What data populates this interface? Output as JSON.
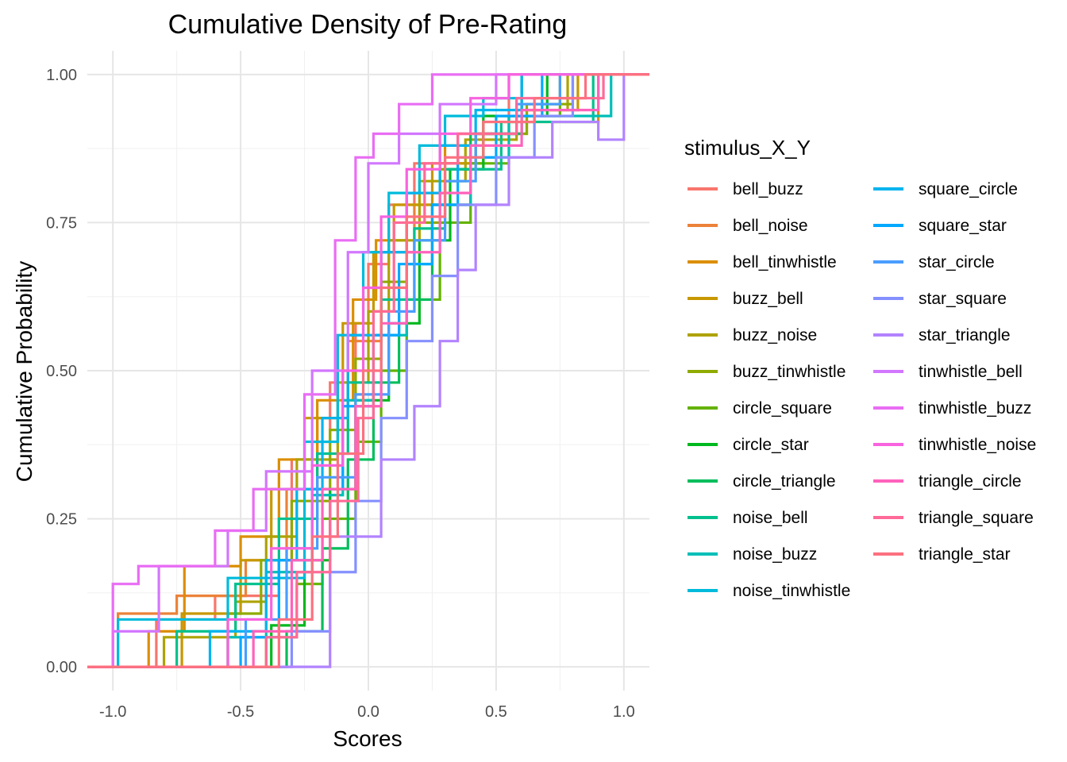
{
  "chart_data": {
    "type": "line",
    "title": "Cumulative Density of Pre-Rating",
    "xlabel": "Scores",
    "ylabel": "Cumulative Probability",
    "xlim": [
      -1.1,
      1.1
    ],
    "ylim": [
      -0.04,
      1.04
    ],
    "x_ticks": [
      -1.0,
      -0.5,
      0.0,
      0.5,
      1.0
    ],
    "x_tick_labels": [
      "-1.0",
      "-0.5",
      "0.0",
      "0.5",
      "1.0"
    ],
    "y_ticks": [
      0.0,
      0.25,
      0.5,
      0.75,
      1.0
    ],
    "y_tick_labels": [
      "0.00",
      "0.25",
      "0.50",
      "0.75",
      "1.00"
    ],
    "grid": true,
    "legend_title": "stimulus_X_Y",
    "legend_position": "right",
    "series": [
      {
        "name": "bell_buzz",
        "color": "#F8766D",
        "x": [
          -0.83,
          -0.6,
          -0.35,
          -0.3,
          -0.22,
          -0.15,
          -0.05,
          0.0,
          0.08,
          0.18,
          0.35,
          0.55
        ],
        "y": [
          0.08,
          0.12,
          0.18,
          0.35,
          0.38,
          0.48,
          0.58,
          0.68,
          0.78,
          0.85,
          0.9,
          1.0
        ]
      },
      {
        "name": "bell_noise",
        "color": "#EC8239",
        "x": [
          -0.98,
          -0.75,
          -0.48,
          -0.32,
          -0.2,
          -0.08,
          0.05,
          0.18,
          0.28,
          0.42,
          0.6
        ],
        "y": [
          0.09,
          0.12,
          0.18,
          0.3,
          0.42,
          0.55,
          0.7,
          0.78,
          0.85,
          0.9,
          1.0
        ]
      },
      {
        "name": "bell_tinwhistle",
        "color": "#DB8E00",
        "x": [
          -0.86,
          -0.72,
          -0.5,
          -0.35,
          -0.2,
          -0.06,
          0.03,
          0.15,
          0.3,
          0.45,
          0.9
        ],
        "y": [
          0.06,
          0.17,
          0.22,
          0.35,
          0.45,
          0.62,
          0.72,
          0.8,
          0.88,
          0.92,
          1.0
        ]
      },
      {
        "name": "buzz_bell",
        "color": "#C79800",
        "x": [
          -0.73,
          -0.5,
          -0.38,
          -0.25,
          -0.1,
          0.02,
          0.1,
          0.25,
          0.45,
          0.62,
          0.82
        ],
        "y": [
          0.09,
          0.18,
          0.3,
          0.42,
          0.58,
          0.7,
          0.78,
          0.85,
          0.9,
          0.94,
          1.0
        ]
      },
      {
        "name": "buzz_noise",
        "color": "#AEA200",
        "x": [
          -0.8,
          -0.52,
          -0.4,
          -0.28,
          -0.12,
          0.0,
          0.08,
          0.2,
          0.38,
          0.58,
          0.78
        ],
        "y": [
          0.05,
          0.11,
          0.22,
          0.35,
          0.48,
          0.6,
          0.72,
          0.82,
          0.89,
          0.94,
          1.0
        ]
      },
      {
        "name": "buzz_tinwhistle",
        "color": "#8FAA00",
        "x": [
          -0.55,
          -0.42,
          -0.3,
          -0.15,
          -0.05,
          0.05,
          0.15,
          0.28,
          0.42,
          0.62,
          0.8
        ],
        "y": [
          0.09,
          0.18,
          0.28,
          0.4,
          0.52,
          0.65,
          0.75,
          0.84,
          0.9,
          0.95,
          1.0
        ]
      },
      {
        "name": "circle_square",
        "color": "#64B200",
        "x": [
          -0.4,
          -0.28,
          -0.18,
          -0.05,
          0.05,
          0.15,
          0.28,
          0.4,
          0.55,
          0.75
        ],
        "y": [
          0.05,
          0.14,
          0.25,
          0.38,
          0.5,
          0.62,
          0.75,
          0.85,
          0.93,
          1.0
        ]
      },
      {
        "name": "circle_star",
        "color": "#00B81F",
        "x": [
          -0.38,
          -0.25,
          -0.15,
          -0.05,
          0.08,
          0.2,
          0.32,
          0.45,
          0.7
        ],
        "y": [
          0.07,
          0.18,
          0.3,
          0.45,
          0.58,
          0.72,
          0.84,
          0.93,
          1.0
        ]
      },
      {
        "name": "circle_triangle",
        "color": "#00BD5C",
        "x": [
          -0.32,
          -0.18,
          -0.08,
          0.02,
          0.12,
          0.25,
          0.4,
          0.6
        ],
        "y": [
          0.06,
          0.2,
          0.35,
          0.48,
          0.62,
          0.78,
          0.9,
          1.0
        ]
      },
      {
        "name": "noise_bell",
        "color": "#00C08D",
        "x": [
          -0.75,
          -0.52,
          -0.35,
          -0.2,
          -0.08,
          0.05,
          0.18,
          0.3,
          0.52,
          0.88
        ],
        "y": [
          0.06,
          0.14,
          0.25,
          0.36,
          0.48,
          0.62,
          0.74,
          0.84,
          0.92,
          1.0
        ]
      },
      {
        "name": "noise_buzz",
        "color": "#00BFB7",
        "x": [
          -0.55,
          -0.4,
          -0.22,
          -0.1,
          0.02,
          0.15,
          0.25,
          0.4,
          0.55,
          0.95
        ],
        "y": [
          0.05,
          0.16,
          0.29,
          0.45,
          0.56,
          0.68,
          0.78,
          0.86,
          0.93,
          1.0
        ]
      },
      {
        "name": "noise_tinwhistle",
        "color": "#00BBDB",
        "x": [
          -0.98,
          -0.55,
          -0.25,
          -0.12,
          -0.02,
          0.08,
          0.2,
          0.3,
          0.45,
          0.6
        ],
        "y": [
          0.08,
          0.15,
          0.38,
          0.56,
          0.7,
          0.8,
          0.88,
          0.93,
          0.96,
          1.0
        ]
      },
      {
        "name": "square_circle",
        "color": "#00B4EF",
        "x": [
          -0.62,
          -0.4,
          -0.28,
          -0.18,
          -0.08,
          0.05,
          0.15,
          0.28,
          0.42,
          0.6
        ],
        "y": [
          0.06,
          0.18,
          0.3,
          0.42,
          0.56,
          0.7,
          0.8,
          0.88,
          0.94,
          1.0
        ]
      },
      {
        "name": "square_star",
        "color": "#00A9FF",
        "x": [
          -0.5,
          -0.35,
          -0.22,
          -0.1,
          0.02,
          0.12,
          0.25,
          0.35,
          0.5,
          0.68
        ],
        "y": [
          0.05,
          0.18,
          0.3,
          0.44,
          0.56,
          0.68,
          0.78,
          0.86,
          0.93,
          1.0
        ]
      },
      {
        "name": "star_circle",
        "color": "#4A9DFF",
        "x": [
          -0.48,
          -0.32,
          -0.2,
          -0.05,
          0.08,
          0.18,
          0.3,
          0.42,
          0.58,
          0.75
        ],
        "y": [
          0.08,
          0.2,
          0.32,
          0.46,
          0.6,
          0.72,
          0.82,
          0.9,
          0.95,
          1.0
        ]
      },
      {
        "name": "star_square",
        "color": "#8590FF",
        "x": [
          -0.3,
          -0.15,
          -0.05,
          0.05,
          0.15,
          0.25,
          0.35,
          0.5,
          0.65,
          0.8
        ],
        "y": [
          0.06,
          0.16,
          0.28,
          0.42,
          0.55,
          0.66,
          0.78,
          0.86,
          0.93,
          1.0
        ]
      },
      {
        "name": "star_triangle",
        "color": "#B283FF",
        "x": [
          -0.15,
          0.05,
          0.18,
          0.28,
          0.35,
          0.42,
          0.55,
          0.72,
          0.9,
          1.0
        ],
        "y": [
          0.22,
          0.35,
          0.44,
          0.55,
          0.67,
          0.78,
          0.86,
          0.92,
          0.89,
          1.0
        ]
      },
      {
        "name": "tinwhistle_bell",
        "color": "#D277FF",
        "x": [
          -1.0,
          -0.82,
          -0.55,
          -0.4,
          -0.22,
          -0.08,
          0.0,
          0.12,
          0.28,
          0.5
        ],
        "y": [
          0.06,
          0.17,
          0.23,
          0.33,
          0.5,
          0.7,
          0.85,
          0.9,
          0.95,
          1.0
        ]
      },
      {
        "name": "tinwhistle_buzz",
        "color": "#E96DF4",
        "x": [
          -1.0,
          -0.9,
          -0.6,
          -0.45,
          -0.25,
          -0.13,
          -0.05,
          0.02,
          0.12,
          0.25
        ],
        "y": [
          0.14,
          0.17,
          0.23,
          0.3,
          0.46,
          0.72,
          0.86,
          0.9,
          0.95,
          1.0
        ]
      },
      {
        "name": "tinwhistle_noise",
        "color": "#F863DF",
        "x": [
          -0.55,
          -0.38,
          -0.22,
          -0.1,
          -0.02,
          0.05,
          0.15,
          0.28,
          0.4,
          0.55
        ],
        "y": [
          0.08,
          0.2,
          0.34,
          0.5,
          0.64,
          0.76,
          0.84,
          0.9,
          0.96,
          1.0
        ]
      },
      {
        "name": "triangle_circle",
        "color": "#FF62BC",
        "x": [
          -0.45,
          -0.3,
          -0.18,
          -0.05,
          0.05,
          0.15,
          0.28,
          0.4,
          0.6,
          0.9
        ],
        "y": [
          0.06,
          0.18,
          0.3,
          0.44,
          0.58,
          0.7,
          0.8,
          0.88,
          0.94,
          1.0
        ]
      },
      {
        "name": "triangle_square",
        "color": "#FF6A98",
        "x": [
          -0.4,
          -0.28,
          -0.15,
          -0.04,
          0.02,
          0.1,
          0.22,
          0.35,
          0.58,
          0.92
        ],
        "y": [
          0.05,
          0.16,
          0.28,
          0.42,
          0.6,
          0.75,
          0.85,
          0.9,
          0.96,
          1.0
        ]
      },
      {
        "name": "triangle_star",
        "color": "#FC717F",
        "x": [
          -0.35,
          -0.22,
          -0.12,
          -0.02,
          0.05,
          0.15,
          0.3,
          0.45,
          0.65,
          0.85
        ],
        "y": [
          0.08,
          0.22,
          0.36,
          0.5,
          0.64,
          0.76,
          0.86,
          0.92,
          0.96,
          1.0
        ]
      }
    ]
  }
}
